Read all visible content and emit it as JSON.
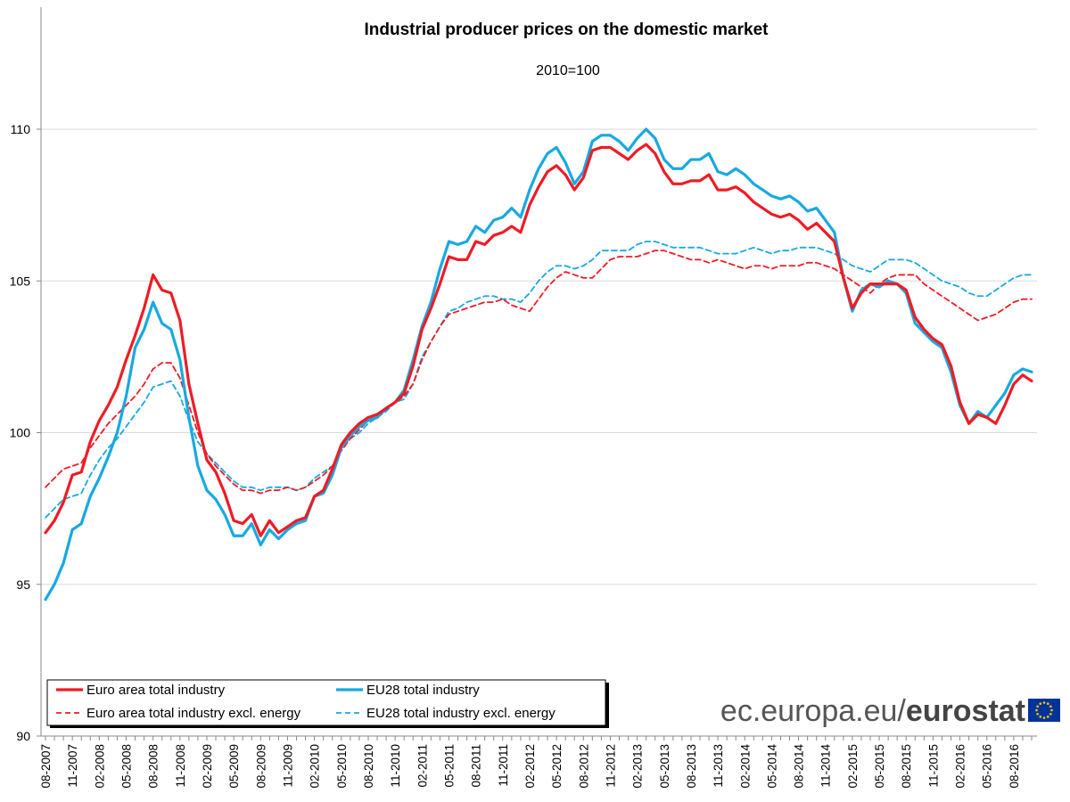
{
  "chart_data": {
    "type": "line",
    "title": "Industrial producer prices on the domestic market",
    "subtitle": "2010=100",
    "xlabel": "",
    "ylabel": "",
    "ylim": [
      90,
      110
    ],
    "yticks": [
      90,
      95,
      100,
      105,
      110
    ],
    "grid": true,
    "legend_position": "bottom-left",
    "x_start": "08-2007",
    "x_end": "08-2016",
    "x_tick_labels": [
      "08-2007",
      "11-2007",
      "02-2008",
      "05-2008",
      "08-2008",
      "11-2008",
      "02-2009",
      "05-2009",
      "08-2009",
      "11-2009",
      "02-2010",
      "05-2010",
      "08-2010",
      "11-2010",
      "02-2011",
      "05-2011",
      "08-2011",
      "11-2011",
      "02-2012",
      "05-2012",
      "08-2012",
      "11-2012",
      "02-2013",
      "05-2013",
      "08-2013",
      "11-2013",
      "02-2014",
      "05-2014",
      "08-2014",
      "11-2014",
      "02-2015",
      "05-2015",
      "08-2015",
      "11-2015",
      "02-2016",
      "05-2016",
      "08-2016"
    ],
    "series": [
      {
        "name": "Euro area total industry",
        "color": "#ee1c25",
        "dashed": false,
        "values": [
          96.7,
          97.1,
          97.7,
          98.6,
          98.7,
          99.7,
          100.4,
          100.9,
          101.5,
          102.4,
          103.2,
          104.1,
          105.2,
          104.7,
          104.6,
          103.7,
          101.6,
          100.3,
          99.1,
          98.7,
          98.0,
          97.1,
          97.0,
          97.3,
          96.6,
          97.1,
          96.7,
          96.9,
          97.1,
          97.2,
          97.9,
          98.1,
          98.8,
          99.6,
          100.0,
          100.3,
          100.5,
          100.6,
          100.8,
          101.0,
          101.3,
          102.2,
          103.4,
          104.1,
          104.9,
          105.8,
          105.7,
          105.7,
          106.3,
          106.2,
          106.5,
          106.6,
          106.8,
          106.6,
          107.5,
          108.1,
          108.6,
          108.8,
          108.5,
          108.0,
          108.4,
          109.3,
          109.4,
          109.4,
          109.2,
          109.0,
          109.3,
          109.5,
          109.2,
          108.6,
          108.2,
          108.2,
          108.3,
          108.3,
          108.5,
          108.0,
          108.0,
          108.1,
          107.9,
          107.6,
          107.4,
          107.2,
          107.1,
          107.2,
          107.0,
          106.7,
          106.9,
          106.6,
          106.3,
          105.1,
          104.1,
          104.6,
          104.9,
          104.9,
          104.9,
          104.9,
          104.7,
          103.8,
          103.4,
          103.1,
          102.9,
          102.2,
          101.0,
          100.3,
          100.6,
          100.5,
          100.3,
          100.9,
          101.6,
          101.9,
          101.7
        ]
      },
      {
        "name": "EU28 total industry",
        "color": "#17a9e1",
        "dashed": false,
        "values": [
          94.5,
          95.0,
          95.7,
          96.8,
          97.0,
          97.9,
          98.5,
          99.2,
          100.0,
          101.2,
          102.8,
          103.4,
          104.3,
          103.6,
          103.4,
          102.4,
          100.5,
          98.9,
          98.1,
          97.8,
          97.3,
          96.6,
          96.6,
          97.0,
          96.3,
          96.8,
          96.5,
          96.8,
          97.0,
          97.1,
          97.9,
          98.0,
          98.6,
          99.5,
          99.9,
          100.2,
          100.4,
          100.5,
          100.8,
          101.0,
          101.4,
          102.4,
          103.5,
          104.3,
          105.4,
          106.3,
          106.2,
          106.3,
          106.8,
          106.6,
          107.0,
          107.1,
          107.4,
          107.1,
          108.0,
          108.7,
          109.2,
          109.4,
          108.9,
          108.2,
          108.6,
          109.6,
          109.8,
          109.8,
          109.6,
          109.3,
          109.7,
          110.0,
          109.7,
          109.0,
          108.7,
          108.7,
          109.0,
          109.0,
          109.2,
          108.6,
          108.5,
          108.7,
          108.5,
          108.2,
          108.0,
          107.8,
          107.7,
          107.8,
          107.6,
          107.3,
          107.4,
          107.0,
          106.6,
          105.1,
          104.0,
          104.7,
          104.9,
          104.8,
          105.0,
          104.9,
          104.6,
          103.6,
          103.3,
          103.0,
          102.8,
          102.0,
          100.9,
          100.3,
          100.7,
          100.5,
          100.9,
          101.3,
          101.9,
          102.1,
          102.0
        ]
      },
      {
        "name": "Euro area total industry excl. energy",
        "color": "#ee1c25",
        "dashed": true,
        "values": [
          98.2,
          98.5,
          98.8,
          98.9,
          99.0,
          99.5,
          99.9,
          100.3,
          100.6,
          100.9,
          101.2,
          101.6,
          102.1,
          102.3,
          102.3,
          101.8,
          100.9,
          100.0,
          99.3,
          98.9,
          98.6,
          98.3,
          98.1,
          98.1,
          98.0,
          98.1,
          98.1,
          98.2,
          98.1,
          98.2,
          98.4,
          98.6,
          98.9,
          99.4,
          99.8,
          100.1,
          100.4,
          100.6,
          100.8,
          101.0,
          101.2,
          101.6,
          102.4,
          103.0,
          103.5,
          103.9,
          104.0,
          104.1,
          104.2,
          104.3,
          104.3,
          104.4,
          104.2,
          104.1,
          104.0,
          104.4,
          104.8,
          105.1,
          105.3,
          105.2,
          105.1,
          105.1,
          105.4,
          105.7,
          105.8,
          105.8,
          105.8,
          105.9,
          106.0,
          106.0,
          105.9,
          105.8,
          105.7,
          105.7,
          105.6,
          105.7,
          105.6,
          105.5,
          105.4,
          105.5,
          105.5,
          105.4,
          105.5,
          105.5,
          105.5,
          105.6,
          105.6,
          105.5,
          105.4,
          105.2,
          105.0,
          104.8,
          104.6,
          104.9,
          105.1,
          105.2,
          105.2,
          105.2,
          104.9,
          104.7,
          104.5,
          104.3,
          104.1,
          103.9,
          103.7,
          103.8,
          103.9,
          104.1,
          104.3,
          104.4,
          104.4
        ]
      },
      {
        "name": "EU28 total industry excl. energy",
        "color": "#17a9e1",
        "dashed": true,
        "values": [
          97.2,
          97.5,
          97.8,
          97.9,
          98.0,
          98.6,
          99.1,
          99.5,
          99.8,
          100.2,
          100.6,
          101.0,
          101.5,
          101.6,
          101.7,
          101.2,
          100.4,
          99.7,
          99.3,
          99.0,
          98.7,
          98.4,
          98.2,
          98.2,
          98.1,
          98.2,
          98.2,
          98.2,
          98.1,
          98.2,
          98.5,
          98.7,
          98.9,
          99.5,
          99.8,
          100.0,
          100.3,
          100.5,
          100.7,
          101.0,
          101.1,
          101.6,
          102.5,
          103.0,
          103.5,
          104.0,
          104.1,
          104.3,
          104.4,
          104.5,
          104.5,
          104.4,
          104.4,
          104.3,
          104.6,
          105.0,
          105.3,
          105.5,
          105.5,
          105.4,
          105.5,
          105.7,
          106.0,
          106.0,
          106.0,
          106.0,
          106.2,
          106.3,
          106.3,
          106.2,
          106.1,
          106.1,
          106.1,
          106.1,
          106.0,
          105.9,
          105.9,
          105.9,
          106.0,
          106.1,
          106.0,
          105.9,
          106.0,
          106.0,
          106.1,
          106.1,
          106.1,
          106.0,
          105.9,
          105.7,
          105.5,
          105.4,
          105.3,
          105.5,
          105.7,
          105.7,
          105.7,
          105.6,
          105.4,
          105.2,
          105.0,
          104.9,
          104.8,
          104.6,
          104.5,
          104.5,
          104.7,
          104.9,
          105.1,
          105.2,
          105.2
        ]
      }
    ]
  },
  "footer": {
    "site_prefix": "ec.europa.eu/",
    "site_brand": "eurostat",
    "flag_bg": "#003399",
    "flag_stars": "#ffcc00",
    "flag_icon": "eu-flag-icon"
  }
}
